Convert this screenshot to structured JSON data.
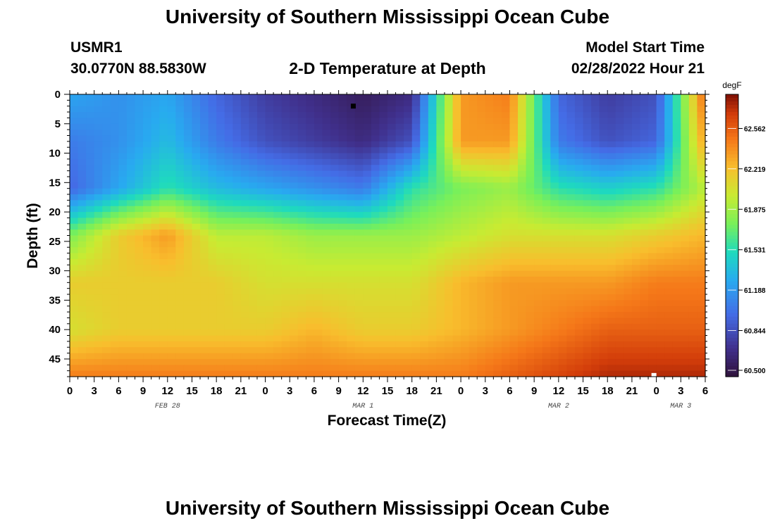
{
  "header": {
    "title": "University of Southern Mississippi Ocean Cube",
    "station": "USMR1",
    "coords": "30.0770N  88.5830W",
    "subtitle": "2-D Temperature at Depth",
    "model_start_label": "Model Start Time",
    "model_start_value": "02/28/2022 Hour 21",
    "repeat_title": "University of Southern Mississippi Ocean Cube"
  },
  "chart_data": {
    "type": "heatmap",
    "title": "2-D Temperature at Depth",
    "xlabel": "Forecast Time(Z)",
    "ylabel": "Depth (ft)",
    "x_tick_labels": [
      "0",
      "3",
      "6",
      "9",
      "12",
      "15",
      "18",
      "21",
      "0",
      "3",
      "6",
      "9",
      "12",
      "15",
      "18",
      "21",
      "0",
      "3",
      "6",
      "9",
      "12",
      "15",
      "18",
      "21",
      "0",
      "3",
      "6"
    ],
    "x_range_hours": [
      0,
      78
    ],
    "date_labels": [
      {
        "text": "FEB 28",
        "hour": 12
      },
      {
        "text": "MAR 1",
        "hour": 36
      },
      {
        "text": "MAR 2",
        "hour": 60
      },
      {
        "text": "MAR 3",
        "hour": 75
      }
    ],
    "y_ticks": [
      0,
      5,
      10,
      15,
      20,
      25,
      30,
      35,
      40,
      45
    ],
    "ylim": [
      0,
      48
    ],
    "y_reversed": true,
    "colorbar": {
      "unit": "degF",
      "range": [
        60.5,
        62.9
      ],
      "labels": [
        "62.562",
        "62.219",
        "61.875",
        "61.531",
        "61.188",
        "60.844",
        "60.500"
      ],
      "label_values": [
        62.562,
        62.219,
        61.875,
        61.531,
        61.188,
        60.844,
        60.5
      ]
    },
    "grid_hours": [
      0,
      6,
      12,
      18,
      24,
      30,
      36,
      42,
      48,
      54,
      60,
      66,
      72,
      78
    ],
    "grid_depths": [
      0,
      8,
      16,
      24,
      32,
      40,
      48
    ],
    "values_degF": [
      [
        61.3,
        61.2,
        61.3,
        61.0,
        60.8,
        60.7,
        60.6,
        60.7,
        62.4,
        62.5,
        61.0,
        60.8,
        60.9,
        62.6
      ],
      [
        61.1,
        61.2,
        61.4,
        61.1,
        60.9,
        60.8,
        60.7,
        60.9,
        62.4,
        62.4,
        61.1,
        60.9,
        61.0,
        62.4
      ],
      [
        61.0,
        61.3,
        61.6,
        61.4,
        61.3,
        61.2,
        61.1,
        61.6,
        61.8,
        61.9,
        61.6,
        61.5,
        61.6,
        62.0
      ],
      [
        61.8,
        62.2,
        62.4,
        62.0,
        62.0,
        61.9,
        61.9,
        61.9,
        62.0,
        62.1,
        62.1,
        62.1,
        62.2,
        62.3
      ],
      [
        62.2,
        62.2,
        62.2,
        62.2,
        62.1,
        62.1,
        62.1,
        62.1,
        62.3,
        62.4,
        62.4,
        62.4,
        62.5,
        62.5
      ],
      [
        62.1,
        62.2,
        62.2,
        62.2,
        62.2,
        62.3,
        62.2,
        62.2,
        62.3,
        62.4,
        62.5,
        62.6,
        62.6,
        62.6
      ],
      [
        62.5,
        62.5,
        62.5,
        62.5,
        62.5,
        62.5,
        62.5,
        62.5,
        62.5,
        62.6,
        62.7,
        62.8,
        62.8,
        62.8
      ]
    ],
    "markers": [
      {
        "hour": 34.8,
        "depth": 2,
        "color": "#000000"
      },
      {
        "hour": 71.7,
        "depth": 47.8,
        "color": "#ffffff"
      }
    ]
  }
}
